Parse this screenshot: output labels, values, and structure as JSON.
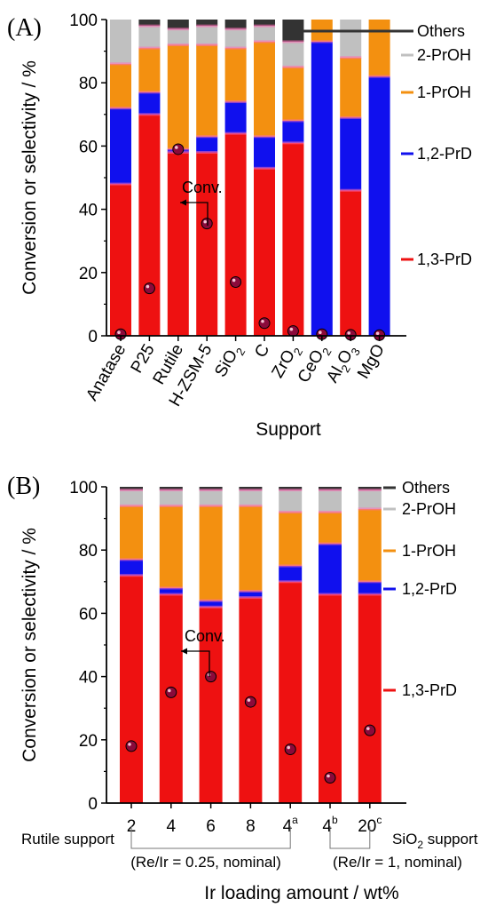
{
  "colors": {
    "Others": "#333333",
    "2-PrOH": "#c0c0c0",
    "1-PrOH": "#f39010",
    "1,2-PrD": "#1010ee",
    "1,3-PrD": "#ee1111",
    "interface": "#ff69b4",
    "conversion_marker": "#8b0a3a"
  },
  "chart_data": [
    {
      "panel": "(A)",
      "type": "bar",
      "stacked": true,
      "ylabel": "Conversion or selectivity / %",
      "xlabel": "Support",
      "ylim": [
        0,
        100
      ],
      "yticks": [
        "0",
        "20",
        "40",
        "60",
        "80",
        "100"
      ],
      "categories": [
        "Anatase",
        "P25",
        "Rutile",
        "H-ZSM-5",
        "SiO₂",
        "C",
        "ZrO₂",
        "CeO₂",
        "Al₂O₃",
        "MgO"
      ],
      "category_labels": [
        {
          "main": "Anatase",
          "sub": ""
        },
        {
          "main": "P25",
          "sub": ""
        },
        {
          "main": "Rutile",
          "sub": ""
        },
        {
          "main": "H-ZSM-5",
          "sub": ""
        },
        {
          "main": "SiO",
          "sub": "2"
        },
        {
          "main": "C",
          "sub": ""
        },
        {
          "main": "ZrO",
          "sub": "2"
        },
        {
          "main": "CeO",
          "sub": "2"
        },
        {
          "main": "Al",
          "sub": "2O3"
        },
        {
          "main": "MgO",
          "sub": ""
        }
      ],
      "series": [
        {
          "name": "1,3-PrD",
          "values": [
            48,
            70,
            58,
            58,
            64,
            53,
            61,
            0,
            46,
            0
          ]
        },
        {
          "name": "1,2-PrD",
          "values": [
            24,
            7,
            1,
            5,
            10,
            10,
            7,
            93,
            23,
            82
          ]
        },
        {
          "name": "1-PrOH",
          "values": [
            14,
            14,
            33,
            29,
            17,
            30,
            17,
            7,
            19,
            18
          ]
        },
        {
          "name": "2-PrOH",
          "values": [
            14,
            7,
            5,
            6,
            6,
            5,
            8,
            0,
            12,
            0
          ]
        },
        {
          "name": "Others",
          "values": [
            0,
            2,
            3,
            2,
            3,
            2,
            7,
            0,
            0,
            0
          ]
        }
      ],
      "conversion": [
        0.5,
        15,
        59,
        35.5,
        17,
        4,
        1.5,
        0.5,
        0.3,
        0.2
      ],
      "annotation": "Conv.",
      "legend": [
        "Others",
        "2-PrOH",
        "1-PrOH",
        "1,2-PrD",
        "1,3-PrD"
      ]
    },
    {
      "panel": "(B)",
      "type": "bar",
      "stacked": true,
      "ylabel": "Conversion or selectivity / %",
      "xlabel": "Ir loading amount / wt%",
      "ylim": [
        0,
        100
      ],
      "yticks": [
        "0",
        "20",
        "40",
        "60",
        "80",
        "100"
      ],
      "categories": [
        "2",
        "4",
        "6",
        "8",
        "4a",
        "4b",
        "20c"
      ],
      "category_labels": [
        {
          "main": "2",
          "sup": ""
        },
        {
          "main": "4",
          "sup": ""
        },
        {
          "main": "6",
          "sup": ""
        },
        {
          "main": "8",
          "sup": ""
        },
        {
          "main": "4",
          "sup": "a"
        },
        {
          "main": "4",
          "sup": "b"
        },
        {
          "main": "20",
          "sup": "c"
        }
      ],
      "series": [
        {
          "name": "1,3-PrD",
          "values": [
            72,
            66,
            62,
            65,
            70,
            66,
            66
          ]
        },
        {
          "name": "1,2-PrD",
          "values": [
            5,
            2,
            2,
            2,
            5,
            16,
            4
          ]
        },
        {
          "name": "1-PrOH",
          "values": [
            17,
            26,
            30,
            27,
            17,
            10,
            23
          ]
        },
        {
          "name": "2-PrOH",
          "values": [
            5,
            5,
            5,
            5,
            7,
            7,
            6
          ]
        },
        {
          "name": "Others",
          "values": [
            1,
            1,
            1,
            1,
            1,
            1,
            1
          ]
        }
      ],
      "conversion": [
        18,
        35,
        40,
        32,
        17,
        8,
        23
      ],
      "annotation": "Conv.",
      "legend": [
        "Others",
        "2-PrOH",
        "1-PrOH",
        "1,2-PrD",
        "1,3-PrD"
      ],
      "group_notes": {
        "rutile_label": "Rutile support",
        "rutile_note": "(Re/Ir = 0.25, nominal)",
        "sio2_label_main": "SiO",
        "sio2_label_sub": "2",
        "sio2_label_rest": " support",
        "sio2_note": "(Re/Ir = 1, nominal)"
      }
    }
  ]
}
